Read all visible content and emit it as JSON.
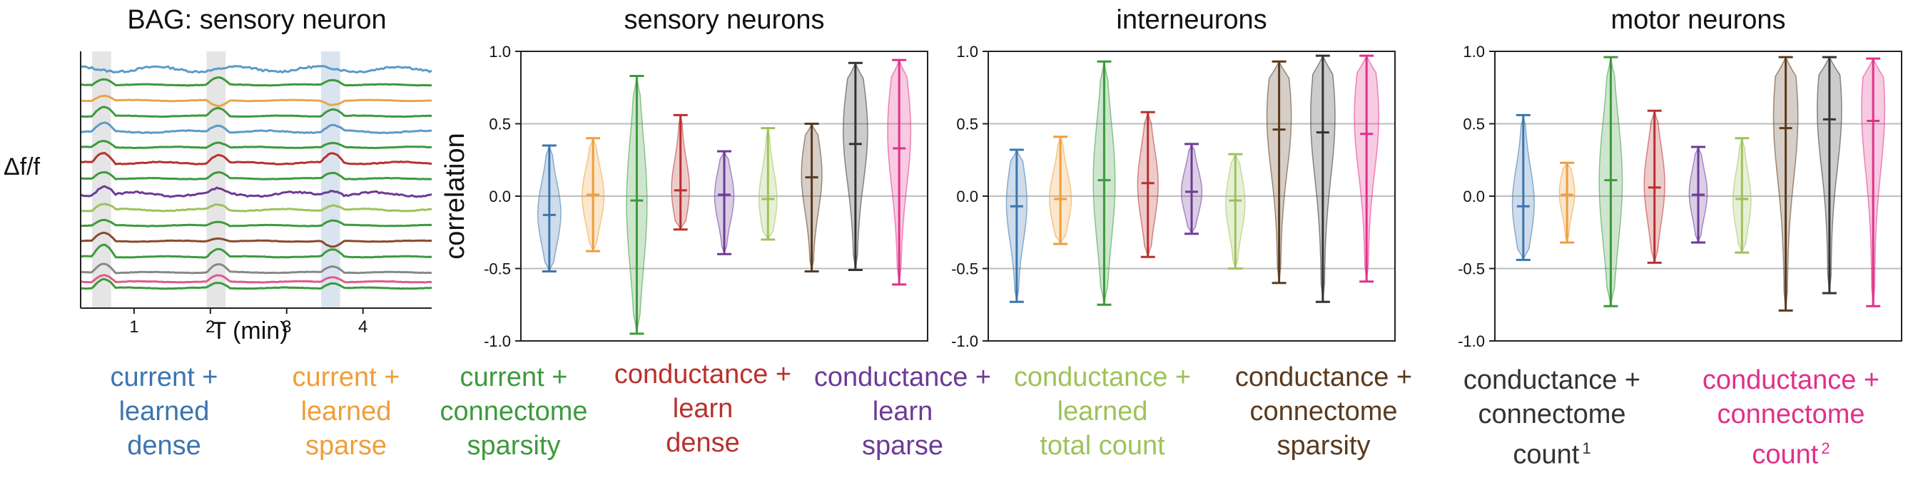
{
  "colors": {
    "current_learned_dense": "#3b75af",
    "current_learned_sparse": "#ef9e3b",
    "current_connectome_sparsity": "#3c9a3c",
    "conductance_learn_dense": "#b8312f",
    "conductance_learn_sparse": "#6d3a96",
    "conductance_learned_total_count": "#9ec25a",
    "conductance_connectome_sparsity": "#5a3a1e",
    "conductance_connectome_count_1": "#333333",
    "conductance_connectome_count_2": "#e0308a"
  },
  "legend": [
    {
      "key": "current_learned_dense",
      "lines": [
        "current +",
        "learned",
        "dense"
      ],
      "sup": ""
    },
    {
      "key": "current_learned_sparse",
      "lines": [
        "current +",
        "learned",
        "sparse"
      ],
      "sup": ""
    },
    {
      "key": "current_connectome_sparsity",
      "lines": [
        "current +",
        "connectome",
        "sparsity"
      ],
      "sup": ""
    },
    {
      "key": "conductance_learn_dense",
      "lines": [
        "conductance +",
        "learn",
        "dense"
      ],
      "sup": ""
    },
    {
      "key": "conductance_learn_sparse",
      "lines": [
        "conductance +",
        "learn",
        "sparse"
      ],
      "sup": ""
    },
    {
      "key": "conductance_learned_total_count",
      "lines": [
        "conductance +",
        "learned",
        "total count"
      ],
      "sup": ""
    },
    {
      "key": "conductance_connectome_sparsity",
      "lines": [
        "conductance +",
        "connectome",
        "sparsity"
      ],
      "sup": ""
    },
    {
      "key": "conductance_connectome_count_1",
      "lines": [
        "conductance +",
        "connectome",
        "count"
      ],
      "sup": "1"
    },
    {
      "key": "conductance_connectome_count_2",
      "lines": [
        "conductance +",
        "connectome",
        "count"
      ],
      "sup": "2"
    }
  ],
  "chart_data": [
    {
      "type": "line",
      "title": "BAG: sensory neuron",
      "xlabel": "T (min)",
      "ylabel": "Δf/f",
      "xlim": [
        0.3,
        4.9
      ],
      "xticks": [
        1,
        2,
        3,
        4
      ],
      "shaded_intervals": [
        [
          0.45,
          0.7
        ],
        [
          1.95,
          2.2
        ],
        [
          3.45,
          3.7
        ]
      ],
      "series": [
        {
          "color": "#5b9bc8",
          "offset": 0.0,
          "events": [
            0,
            0,
            0
          ],
          "noise": 0.25
        },
        {
          "color": "#3c9a3c",
          "offset": 1.0,
          "events": [
            0.6,
            0.7,
            0.5
          ],
          "noise": 0.05
        },
        {
          "color": "#e8a64a",
          "offset": 2.0,
          "events": [
            0.5,
            -0.6,
            -0.4
          ],
          "noise": 0.05
        },
        {
          "color": "#3c9a3c",
          "offset": 3.0,
          "events": [
            0.9,
            0.8,
            0.7
          ],
          "noise": 0.05
        },
        {
          "color": "#5b9bc8",
          "offset": 4.0,
          "events": [
            0.8,
            0.7,
            0.6
          ],
          "noise": 0.1
        },
        {
          "color": "#3c9a3c",
          "offset": 5.0,
          "events": [
            0.6,
            0.5,
            0.4
          ],
          "noise": 0.05
        },
        {
          "color": "#b8312f",
          "offset": 6.0,
          "events": [
            1.0,
            0.8,
            0.9
          ],
          "noise": 0.1
        },
        {
          "color": "#3c9a3c",
          "offset": 7.0,
          "events": [
            0.7,
            0.6,
            0.6
          ],
          "noise": 0.05
        },
        {
          "color": "#6d3a96",
          "offset": 8.0,
          "events": [
            0.9,
            0.4,
            0.5
          ],
          "noise": 0.2
        },
        {
          "color": "#9ec25a",
          "offset": 9.0,
          "events": [
            0.6,
            0.5,
            0.5
          ],
          "noise": 0.1
        },
        {
          "color": "#3c9a3c",
          "offset": 10.0,
          "events": [
            0.5,
            0.4,
            0.5
          ],
          "noise": 0.05
        },
        {
          "color": "#8b4a2f",
          "offset": 11.0,
          "events": [
            0.8,
            0.3,
            -0.6
          ],
          "noise": 0.05
        },
        {
          "color": "#3c9a3c",
          "offset": 12.0,
          "events": [
            1.2,
            0.8,
            0.7
          ],
          "noise": 0.05
        },
        {
          "color": "#888888",
          "offset": 13.0,
          "events": [
            0.9,
            0.8,
            0.6
          ],
          "noise": 0.05
        },
        {
          "color": "#e05a8a",
          "offset": 13.6,
          "events": [
            0.7,
            0.6,
            0.5
          ],
          "noise": 0.05
        },
        {
          "color": "#3c9a3c",
          "offset": 14.0,
          "events": [
            0.9,
            0.5,
            0.5
          ],
          "noise": 0.05
        }
      ]
    },
    {
      "type": "violin",
      "title": "sensory neurons",
      "ylabel": "correlation",
      "ylim": [
        -1.0,
        1.0
      ],
      "yticks": [
        -1.0,
        -0.5,
        0.0,
        0.5,
        1.0
      ],
      "grid": true,
      "violins": [
        {
          "key": "current_learned_dense",
          "min": -0.52,
          "max": 0.35,
          "median": -0.13,
          "peak": -0.12,
          "width": 0.9
        },
        {
          "key": "current_learned_sparse",
          "min": -0.38,
          "max": 0.4,
          "median": 0.01,
          "peak": 0.0,
          "width": 0.85
        },
        {
          "key": "current_connectome_sparsity",
          "min": -0.95,
          "max": 0.83,
          "median": -0.03,
          "peak": -0.05,
          "width": 0.8
        },
        {
          "key": "conductance_learn_dense",
          "min": -0.23,
          "max": 0.56,
          "median": 0.04,
          "peak": 0.05,
          "width": 0.7
        },
        {
          "key": "conductance_learn_sparse",
          "min": -0.4,
          "max": 0.31,
          "median": 0.01,
          "peak": 0.0,
          "width": 0.75
        },
        {
          "key": "conductance_learned_total_count",
          "min": -0.3,
          "max": 0.47,
          "median": -0.02,
          "peak": -0.02,
          "width": 0.7
        },
        {
          "key": "conductance_connectome_sparsity",
          "min": -0.52,
          "max": 0.5,
          "median": 0.13,
          "peak": 0.15,
          "width": 0.8
        },
        {
          "key": "conductance_connectome_count_1",
          "min": -0.51,
          "max": 0.92,
          "median": 0.36,
          "peak": 0.45,
          "width": 0.95
        },
        {
          "key": "conductance_connectome_count_2",
          "min": -0.61,
          "max": 0.94,
          "median": 0.33,
          "peak": 0.45,
          "width": 0.9
        }
      ]
    },
    {
      "type": "violin",
      "title": "interneurons",
      "ylabel": "",
      "ylim": [
        -1.0,
        1.0
      ],
      "yticks": [
        -1.0,
        -0.5,
        0.0,
        0.5,
        1.0
      ],
      "grid": true,
      "violins": [
        {
          "key": "current_learned_dense",
          "min": -0.73,
          "max": 0.32,
          "median": -0.07,
          "peak": -0.05,
          "width": 0.8
        },
        {
          "key": "current_learned_sparse",
          "min": -0.33,
          "max": 0.41,
          "median": -0.02,
          "peak": -0.02,
          "width": 0.85
        },
        {
          "key": "current_connectome_sparsity",
          "min": -0.75,
          "max": 0.93,
          "median": 0.11,
          "peak": 0.1,
          "width": 0.85
        },
        {
          "key": "conductance_learn_dense",
          "min": -0.42,
          "max": 0.58,
          "median": 0.09,
          "peak": 0.08,
          "width": 0.8
        },
        {
          "key": "conductance_learn_sparse",
          "min": -0.26,
          "max": 0.36,
          "median": 0.03,
          "peak": 0.03,
          "width": 0.8
        },
        {
          "key": "conductance_learned_total_count",
          "min": -0.5,
          "max": 0.29,
          "median": -0.03,
          "peak": -0.05,
          "width": 0.75
        },
        {
          "key": "conductance_connectome_sparsity",
          "min": -0.6,
          "max": 0.93,
          "median": 0.46,
          "peak": 0.55,
          "width": 0.95
        },
        {
          "key": "conductance_connectome_count_1",
          "min": -0.73,
          "max": 0.97,
          "median": 0.44,
          "peak": 0.55,
          "width": 0.95
        },
        {
          "key": "conductance_connectome_count_2",
          "min": -0.59,
          "max": 0.97,
          "median": 0.43,
          "peak": 0.55,
          "width": 0.95
        }
      ]
    },
    {
      "type": "violin",
      "title": "motor neurons",
      "ylabel": "",
      "ylim": [
        -1.0,
        1.0
      ],
      "yticks": [
        -1.0,
        -0.5,
        0.0,
        0.5,
        1.0
      ],
      "grid": true,
      "violins": [
        {
          "key": "current_learned_dense",
          "min": -0.44,
          "max": 0.56,
          "median": -0.07,
          "peak": -0.05,
          "width": 0.85
        },
        {
          "key": "current_learned_sparse",
          "min": -0.32,
          "max": 0.23,
          "median": 0.01,
          "peak": 0.02,
          "width": 0.6
        },
        {
          "key": "current_connectome_sparsity",
          "min": -0.76,
          "max": 0.96,
          "median": 0.11,
          "peak": 0.1,
          "width": 0.9
        },
        {
          "key": "conductance_learn_dense",
          "min": -0.46,
          "max": 0.59,
          "median": 0.06,
          "peak": 0.08,
          "width": 0.8
        },
        {
          "key": "conductance_learn_sparse",
          "min": -0.32,
          "max": 0.34,
          "median": 0.01,
          "peak": 0.02,
          "width": 0.7
        },
        {
          "key": "conductance_learned_total_count",
          "min": -0.39,
          "max": 0.4,
          "median": -0.02,
          "peak": -0.03,
          "width": 0.7
        },
        {
          "key": "conductance_connectome_sparsity",
          "min": -0.79,
          "max": 0.96,
          "median": 0.47,
          "peak": 0.55,
          "width": 0.95
        },
        {
          "key": "conductance_connectome_count_1",
          "min": -0.67,
          "max": 0.96,
          "median": 0.53,
          "peak": 0.6,
          "width": 0.95
        },
        {
          "key": "conductance_connectome_count_2",
          "min": -0.76,
          "max": 0.95,
          "median": 0.52,
          "peak": 0.6,
          "width": 0.9
        }
      ]
    }
  ]
}
